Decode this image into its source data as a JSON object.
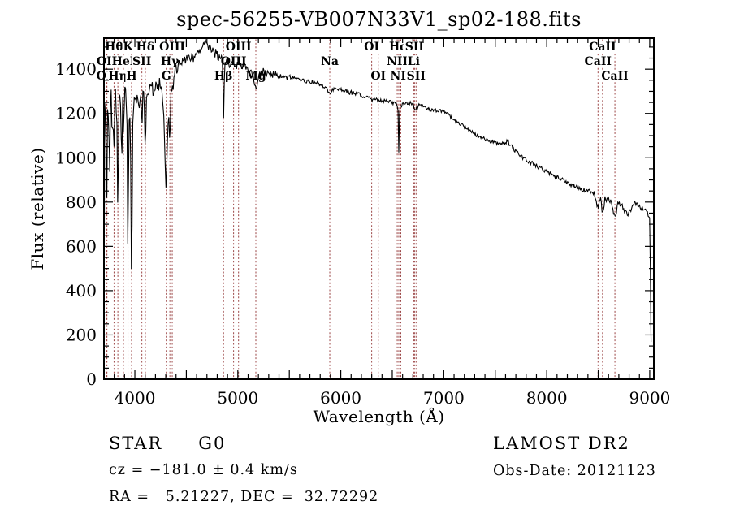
{
  "title": "spec-56255-VB007N33V1_sp02-188.fits",
  "annotations": {
    "class_label": "STAR",
    "subclass": "G0",
    "survey": "LAMOST DR2",
    "cz": "cz = −181.0 ± 0.4 km/s",
    "obs_date": "Obs-Date: 20121123",
    "ra_dec": "RA =   5.21227, DEC =  32.72292"
  },
  "chart_data": {
    "type": "line",
    "title": "spec-56255-VB007N33V1_sp02-188.fits",
    "xlabel": "Wavelength (Å)",
    "ylabel": "Flux (relative)",
    "xlim": [
      3700,
      9040
    ],
    "ylim": [
      0,
      1540
    ],
    "grid": false,
    "x_tick_labels": [
      4000,
      5000,
      6000,
      7000,
      8000,
      9000
    ],
    "x_major_tick_step": 500,
    "x_minor_tick_step": 100,
    "y_tick_labels": [
      0,
      200,
      400,
      600,
      800,
      1000,
      1200,
      1400
    ],
    "y_major_tick_step": 200,
    "y_minor_tick_step": 50,
    "line_color": "#000000",
    "marker_line_color": "#9b4545",
    "series_name": "flux",
    "spectral_lines": [
      {
        "label": "OII",
        "wavelength": 3726,
        "row": 3
      },
      {
        "label": "OII",
        "wavelength": 3729,
        "row": 2
      },
      {
        "label": "Hθ",
        "wavelength": 3798,
        "row": 1
      },
      {
        "label": "Hη",
        "wavelength": 3835,
        "row": 3
      },
      {
        "label": "HeI",
        "wavelength": 3889,
        "row": 2
      },
      {
        "label": "K",
        "wavelength": 3933,
        "row": 1
      },
      {
        "label": "H",
        "wavelength": 3968,
        "row": 3
      },
      {
        "label": "SII",
        "wavelength": 4068,
        "row": 2
      },
      {
        "label": "Hδ",
        "wavelength": 4102,
        "row": 1
      },
      {
        "label": "G",
        "wavelength": 4305,
        "row": 3
      },
      {
        "label": "Hγ",
        "wavelength": 4340,
        "row": 2
      },
      {
        "label": "OIII",
        "wavelength": 4363,
        "row": 1
      },
      {
        "label": "Hβ",
        "wavelength": 4861,
        "row": 3
      },
      {
        "label": "OIII",
        "wavelength": 4959,
        "row": 2
      },
      {
        "label": "OIII",
        "wavelength": 5007,
        "row": 1
      },
      {
        "label": "Mg",
        "wavelength": 5175,
        "row": 3
      },
      {
        "label": "Na",
        "wavelength": 5893,
        "row": 2
      },
      {
        "label": "OI",
        "wavelength": 6300,
        "row": 1
      },
      {
        "label": "OI",
        "wavelength": 6364,
        "row": 3
      },
      {
        "label": "NII",
        "wavelength": 6548,
        "row": 2
      },
      {
        "label": "Hα",
        "wavelength": 6563,
        "row": 1
      },
      {
        "label": "NII",
        "wavelength": 6583,
        "row": 3
      },
      {
        "label": "Li",
        "wavelength": 6708,
        "row": 2
      },
      {
        "label": "SII",
        "wavelength": 6716,
        "row": 1
      },
      {
        "label": "SII",
        "wavelength": 6731,
        "row": 3
      },
      {
        "label": "CaII",
        "wavelength": 8498,
        "row": 2
      },
      {
        "label": "CaII",
        "wavelength": 8542,
        "row": 1
      },
      {
        "label": "CaII",
        "wavelength": 8662,
        "row": 3
      }
    ],
    "spectrum_envelope": [
      [
        3700,
        30
      ],
      [
        3702,
        1150
      ],
      [
        3706,
        1230
      ],
      [
        3711,
        1140
      ],
      [
        3716,
        1270
      ],
      [
        3721,
        1000
      ],
      [
        3727,
        710
      ],
      [
        3733,
        1190
      ],
      [
        3740,
        1265
      ],
      [
        3747,
        1150
      ],
      [
        3754,
        850
      ],
      [
        3762,
        1190
      ],
      [
        3770,
        1265
      ],
      [
        3778,
        1080
      ],
      [
        3787,
        1200
      ],
      [
        3798,
        1020
      ],
      [
        3808,
        1270
      ],
      [
        3818,
        1230
      ],
      [
        3827,
        1120
      ],
      [
        3835,
        710
      ],
      [
        3844,
        1225
      ],
      [
        3855,
        1285
      ],
      [
        3866,
        1150
      ],
      [
        3874,
        935
      ],
      [
        3882,
        1225
      ],
      [
        3889,
        1085
      ],
      [
        3898,
        1255
      ],
      [
        3908,
        1295
      ],
      [
        3920,
        1255
      ],
      [
        3927,
        1100
      ],
      [
        3933,
        430
      ],
      [
        3941,
        1175
      ],
      [
        3950,
        1255
      ],
      [
        3958,
        1120
      ],
      [
        3968,
        355
      ],
      [
        3978,
        1100
      ],
      [
        3988,
        1245
      ],
      [
        4000,
        1275
      ],
      [
        4012,
        1240
      ],
      [
        4025,
        1285
      ],
      [
        4040,
        1240
      ],
      [
        4055,
        1285
      ],
      [
        4068,
        1140
      ],
      [
        4080,
        1295
      ],
      [
        4092,
        1255
      ],
      [
        4102,
        990
      ],
      [
        4112,
        1275
      ],
      [
        4125,
        1305
      ],
      [
        4140,
        1285
      ],
      [
        4160,
        1325
      ],
      [
        4180,
        1305
      ],
      [
        4200,
        1335
      ],
      [
        4220,
        1315
      ],
      [
        4240,
        1335
      ],
      [
        4260,
        1295
      ],
      [
        4280,
        1175
      ],
      [
        4295,
        950
      ],
      [
        4305,
        830
      ],
      [
        4315,
        1080
      ],
      [
        4325,
        1215
      ],
      [
        4333,
        1130
      ],
      [
        4340,
        1020
      ],
      [
        4350,
        1265
      ],
      [
        4363,
        1315
      ],
      [
        4378,
        1355
      ],
      [
        4395,
        1395
      ],
      [
        4420,
        1415
      ],
      [
        4450,
        1435
      ],
      [
        4480,
        1445
      ],
      [
        4520,
        1455
      ],
      [
        4560,
        1450
      ],
      [
        4600,
        1470
      ],
      [
        4640,
        1480
      ],
      [
        4680,
        1505
      ],
      [
        4700,
        1515
      ],
      [
        4720,
        1500
      ],
      [
        4750,
        1495
      ],
      [
        4780,
        1470
      ],
      [
        4810,
        1460
      ],
      [
        4835,
        1450
      ],
      [
        4852,
        1435
      ],
      [
        4861,
        1170
      ],
      [
        4872,
        1420
      ],
      [
        4890,
        1430
      ],
      [
        4920,
        1420
      ],
      [
        4950,
        1430
      ],
      [
        4980,
        1415
      ],
      [
        5010,
        1420
      ],
      [
        5040,
        1410
      ],
      [
        5070,
        1418
      ],
      [
        5100,
        1400
      ],
      [
        5130,
        1390
      ],
      [
        5160,
        1340
      ],
      [
        5175,
        1305
      ],
      [
        5192,
        1350
      ],
      [
        5220,
        1378
      ],
      [
        5250,
        1390
      ],
      [
        5280,
        1375
      ],
      [
        5310,
        1388
      ],
      [
        5340,
        1372
      ],
      [
        5370,
        1378
      ],
      [
        5400,
        1368
      ],
      [
        5440,
        1372
      ],
      [
        5480,
        1362
      ],
      [
        5520,
        1365
      ],
      [
        5560,
        1352
      ],
      [
        5600,
        1356
      ],
      [
        5650,
        1346
      ],
      [
        5700,
        1342
      ],
      [
        5750,
        1345
      ],
      [
        5800,
        1332
      ],
      [
        5850,
        1322
      ],
      [
        5893,
        1285
      ],
      [
        5930,
        1315
      ],
      [
        5970,
        1312
      ],
      [
        6000,
        1308
      ],
      [
        6050,
        1300
      ],
      [
        6100,
        1295
      ],
      [
        6150,
        1290
      ],
      [
        6200,
        1282
      ],
      [
        6250,
        1276
      ],
      [
        6300,
        1258
      ],
      [
        6330,
        1268
      ],
      [
        6364,
        1255
      ],
      [
        6400,
        1262
      ],
      [
        6450,
        1256
      ],
      [
        6500,
        1250
      ],
      [
        6540,
        1242
      ],
      [
        6555,
        1235
      ],
      [
        6563,
        1020
      ],
      [
        6572,
        1230
      ],
      [
        6590,
        1238
      ],
      [
        6620,
        1242
      ],
      [
        6660,
        1248
      ],
      [
        6700,
        1244
      ],
      [
        6716,
        1222
      ],
      [
        6731,
        1220
      ],
      [
        6760,
        1238
      ],
      [
        6800,
        1232
      ],
      [
        6850,
        1222
      ],
      [
        6900,
        1212
      ],
      [
        6950,
        1215
      ],
      [
        7000,
        1208
      ],
      [
        7060,
        1188
      ],
      [
        7120,
        1162
      ],
      [
        7180,
        1148
      ],
      [
        7240,
        1128
      ],
      [
        7300,
        1108
      ],
      [
        7360,
        1092
      ],
      [
        7420,
        1080
      ],
      [
        7480,
        1070
      ],
      [
        7530,
        1060
      ],
      [
        7580,
        1066
      ],
      [
        7620,
        1074
      ],
      [
        7660,
        1050
      ],
      [
        7700,
        1030
      ],
      [
        7750,
        1008
      ],
      [
        7800,
        993
      ],
      [
        7850,
        978
      ],
      [
        7900,
        963
      ],
      [
        7950,
        950
      ],
      [
        8000,
        940
      ],
      [
        8060,
        923
      ],
      [
        8120,
        908
      ],
      [
        8180,
        893
      ],
      [
        8240,
        878
      ],
      [
        8300,
        866
      ],
      [
        8360,
        856
      ],
      [
        8420,
        848
      ],
      [
        8460,
        840
      ],
      [
        8498,
        770
      ],
      [
        8520,
        826
      ],
      [
        8542,
        745
      ],
      [
        8565,
        816
      ],
      [
        8600,
        810
      ],
      [
        8630,
        803
      ],
      [
        8662,
        725
      ],
      [
        8690,
        796
      ],
      [
        8720,
        788
      ],
      [
        8750,
        768
      ],
      [
        8790,
        742
      ],
      [
        8820,
        766
      ],
      [
        8850,
        793
      ],
      [
        8880,
        786
      ],
      [
        8910,
        773
      ],
      [
        8940,
        766
      ],
      [
        8970,
        753
      ],
      [
        8995,
        743
      ],
      [
        9003,
        738
      ],
      [
        9006,
        500
      ],
      [
        9009,
        240
      ],
      [
        9012,
        170
      ],
      [
        9015,
        165
      ]
    ],
    "noise_profile": [
      [
        4000,
        55
      ],
      [
        4400,
        33
      ],
      [
        4900,
        24
      ],
      [
        5400,
        17
      ],
      [
        6600,
        10
      ],
      [
        7600,
        8
      ],
      [
        8400,
        10
      ],
      [
        9002,
        12
      ],
      [
        9100,
        2
      ]
    ]
  }
}
